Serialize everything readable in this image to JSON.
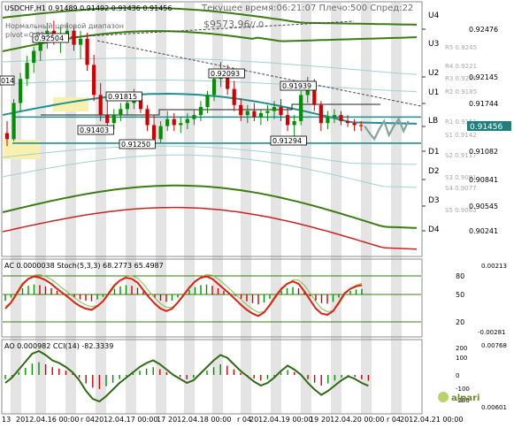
{
  "header": {
    "symbol": "USDCHF,H1",
    "ohlc": "0.91489 0.91492 0.91436 0.91456",
    "server_time": "Текущее время:06:21:07 Плечо:500 Спред:22",
    "balance": "$9573.96",
    "separator": "// 0",
    "indicator_line1": "Нормальный ценовой диапазон",
    "indicator_line2": "pivot=0.9155"
  },
  "main_panel": {
    "y_ticks": [
      "0.92476",
      "0.92145",
      "0.91744",
      "0.91456",
      "0.91082",
      "0.90841",
      "0.90545",
      "0.90241"
    ],
    "current_price": "0.91456",
    "level_labels": [
      "U4",
      "U3",
      "U2",
      "U1",
      "LB",
      "D1",
      "D2",
      "D3",
      "D4"
    ],
    "pivot_labels": [
      "R5 0.9245",
      "R4 0.9221",
      "R3 0.9206",
      "R2 0.9185",
      "R1 0.9151",
      "S1 0.9142",
      "S2 0.9117",
      "S3 0.9091",
      "S4 0.9077",
      "S5 0.9063"
    ],
    "price_callouts": [
      "0.92504",
      "0.92093",
      "0.91939",
      "0.91815",
      "0.91403",
      "0.91250",
      "0.91294"
    ],
    "left_edge_label": "014"
  },
  "ac_panel": {
    "label": "AC 0.0000038",
    "stoch_label": "Stoch(5,3,3) 68.2773 65.4987",
    "y_ticks": [
      "0.00213",
      "-0.00281"
    ],
    "stoch_levels": [
      "80",
      "50",
      "20"
    ]
  },
  "ao_panel": {
    "label": "AO 0.000982",
    "cci_label": "CCI(14) -82.3339",
    "y_ticks": [
      "0.00768",
      "0.00601"
    ],
    "cci_levels": [
      "200",
      "100",
      "0",
      "-100",
      "-200"
    ]
  },
  "x_axis": {
    "labels": [
      "13",
      "2012.04.16 00:00",
      "r 04",
      "2012.04.17 00:00",
      "17",
      "2012.04.18 00:00",
      "r 04",
      "2012.04.19 00:00",
      "19",
      "2012.04.20 00:00",
      "r 04",
      "2012.04.21 00:00"
    ]
  },
  "logo": {
    "text": "alpari"
  },
  "colors": {
    "bull_candle": "#009000",
    "bear_candle": "#d00000",
    "band_green": "#3a7d12",
    "band_teal": "#1f8f8f",
    "band_red": "#cc2222",
    "price_marker": "#1f7f7f",
    "forecast": "#7fa59a"
  },
  "chart_data": [
    {
      "type": "candlestick",
      "title": "USDCHF,H1",
      "ylim": [
        0.9016,
        0.9268
      ],
      "candles": [
        [
          0.9138,
          0.915,
          0.9125,
          0.9132
        ],
        [
          0.9132,
          0.9172,
          0.913,
          0.9168
        ],
        [
          0.9168,
          0.9198,
          0.916,
          0.9192
        ],
        [
          0.9192,
          0.9215,
          0.9185,
          0.9208
        ],
        [
          0.9208,
          0.9224,
          0.9198,
          0.922
        ],
        [
          0.922,
          0.9236,
          0.921,
          0.923
        ],
        [
          0.923,
          0.9248,
          0.9222,
          0.924
        ],
        [
          0.924,
          0.925,
          0.9226,
          0.9232
        ],
        [
          0.9232,
          0.9244,
          0.9218,
          0.9236
        ],
        [
          0.9236,
          0.9248,
          0.9228,
          0.924
        ],
        [
          0.924,
          0.9245,
          0.922,
          0.9226
        ],
        [
          0.9226,
          0.924,
          0.9212,
          0.9232
        ],
        [
          0.9232,
          0.9238,
          0.92,
          0.9206
        ],
        [
          0.9206,
          0.9216,
          0.917,
          0.9176
        ],
        [
          0.9176,
          0.9188,
          0.915,
          0.9156
        ],
        [
          0.9156,
          0.917,
          0.914,
          0.9148
        ],
        [
          0.9148,
          0.9162,
          0.9142,
          0.9156
        ],
        [
          0.9156,
          0.9168,
          0.915,
          0.9162
        ],
        [
          0.9162,
          0.9172,
          0.9156,
          0.9168
        ],
        [
          0.9168,
          0.9182,
          0.9162,
          0.9172
        ],
        [
          0.9172,
          0.9178,
          0.9158,
          0.9162
        ],
        [
          0.9162,
          0.9166,
          0.914,
          0.9146
        ],
        [
          0.9146,
          0.9156,
          0.9125,
          0.9132
        ],
        [
          0.9132,
          0.915,
          0.9128,
          0.9145
        ],
        [
          0.9145,
          0.916,
          0.914,
          0.9152
        ],
        [
          0.9152,
          0.9158,
          0.914,
          0.9146
        ],
        [
          0.9146,
          0.9154,
          0.9138,
          0.9148
        ],
        [
          0.9148,
          0.9158,
          0.9142,
          0.9152
        ],
        [
          0.9152,
          0.9162,
          0.9146,
          0.9156
        ],
        [
          0.9156,
          0.917,
          0.915,
          0.9164
        ],
        [
          0.9164,
          0.918,
          0.9158,
          0.9176
        ],
        [
          0.9176,
          0.9196,
          0.917,
          0.9192
        ],
        [
          0.9192,
          0.9209,
          0.9184,
          0.92
        ],
        [
          0.92,
          0.9206,
          0.9176,
          0.9182
        ],
        [
          0.9182,
          0.919,
          0.916,
          0.9166
        ],
        [
          0.9166,
          0.9172,
          0.915,
          0.9156
        ],
        [
          0.9156,
          0.9166,
          0.9148,
          0.916
        ],
        [
          0.916,
          0.9168,
          0.915,
          0.9154
        ],
        [
          0.9154,
          0.9162,
          0.9146,
          0.9158
        ],
        [
          0.9158,
          0.9166,
          0.915,
          0.916
        ],
        [
          0.916,
          0.917,
          0.9152,
          0.9164
        ],
        [
          0.9164,
          0.9172,
          0.915,
          0.9156
        ],
        [
          0.9156,
          0.9164,
          0.914,
          0.9146
        ],
        [
          0.9146,
          0.9156,
          0.9129,
          0.915
        ],
        [
          0.915,
          0.918,
          0.9146,
          0.9176
        ],
        [
          0.9176,
          0.9194,
          0.9168,
          0.9186
        ],
        [
          0.9186,
          0.9192,
          0.916,
          0.9166
        ],
        [
          0.9166,
          0.917,
          0.914,
          0.9148
        ],
        [
          0.9148,
          0.916,
          0.9142,
          0.9154
        ],
        [
          0.9154,
          0.9162,
          0.9148,
          0.9156
        ],
        [
          0.9156,
          0.916,
          0.9146,
          0.915
        ],
        [
          0.915,
          0.9156,
          0.9144,
          0.9148
        ],
        [
          0.9148,
          0.9152,
          0.914,
          0.9146
        ],
        [
          0.9146,
          0.915,
          0.914,
          0.9145
        ]
      ],
      "forecast": [
        0.9145,
        0.9138,
        0.9132,
        0.9142,
        0.915,
        0.9136,
        0.9145,
        0.9152,
        0.914,
        0.915
      ],
      "horizontal_levels": {
        "LB": 0.9154,
        "S1": 0.9142,
        "D1": 0.9128,
        "pivot": 0.9155
      }
    },
    {
      "type": "line",
      "title": "Stoch(5,3,3)",
      "ylim": [
        0,
        100
      ],
      "series": [
        {
          "name": "Stoch(5,3,3)",
          "values": [
            30,
            40,
            55,
            70,
            78,
            82,
            80,
            76,
            70,
            62,
            55,
            48,
            40,
            34,
            30,
            28,
            34,
            42,
            55,
            68,
            76,
            80,
            78,
            72,
            60,
            48,
            38,
            30,
            26,
            30,
            40,
            52,
            64,
            74,
            80,
            82,
            78,
            70,
            62,
            54,
            45,
            36,
            28,
            22,
            18,
            24,
            36,
            50,
            62,
            70,
            74,
            70,
            58,
            44,
            30,
            22,
            20,
            26,
            40,
            55,
            62,
            66,
            68
          ]
        }
      ]
    },
    {
      "type": "line",
      "title": "CCI(14)",
      "ylim": [
        -250,
        250
      ],
      "series": [
        {
          "name": "CCI(14)",
          "values": [
            -60,
            -20,
            40,
            100,
            160,
            180,
            150,
            110,
            90,
            60,
            20,
            -40,
            -120,
            -180,
            -200,
            -160,
            -110,
            -60,
            -20,
            20,
            60,
            90,
            110,
            80,
            40,
            0,
            -30,
            -60,
            -40,
            10,
            60,
            110,
            150,
            130,
            80,
            30,
            -10,
            -50,
            -80,
            -60,
            -20,
            30,
            70,
            40,
            0,
            -60,
            -110,
            -150,
            -120,
            -80,
            -40,
            -10,
            -30,
            -60,
            -82
          ]
        }
      ]
    }
  ]
}
